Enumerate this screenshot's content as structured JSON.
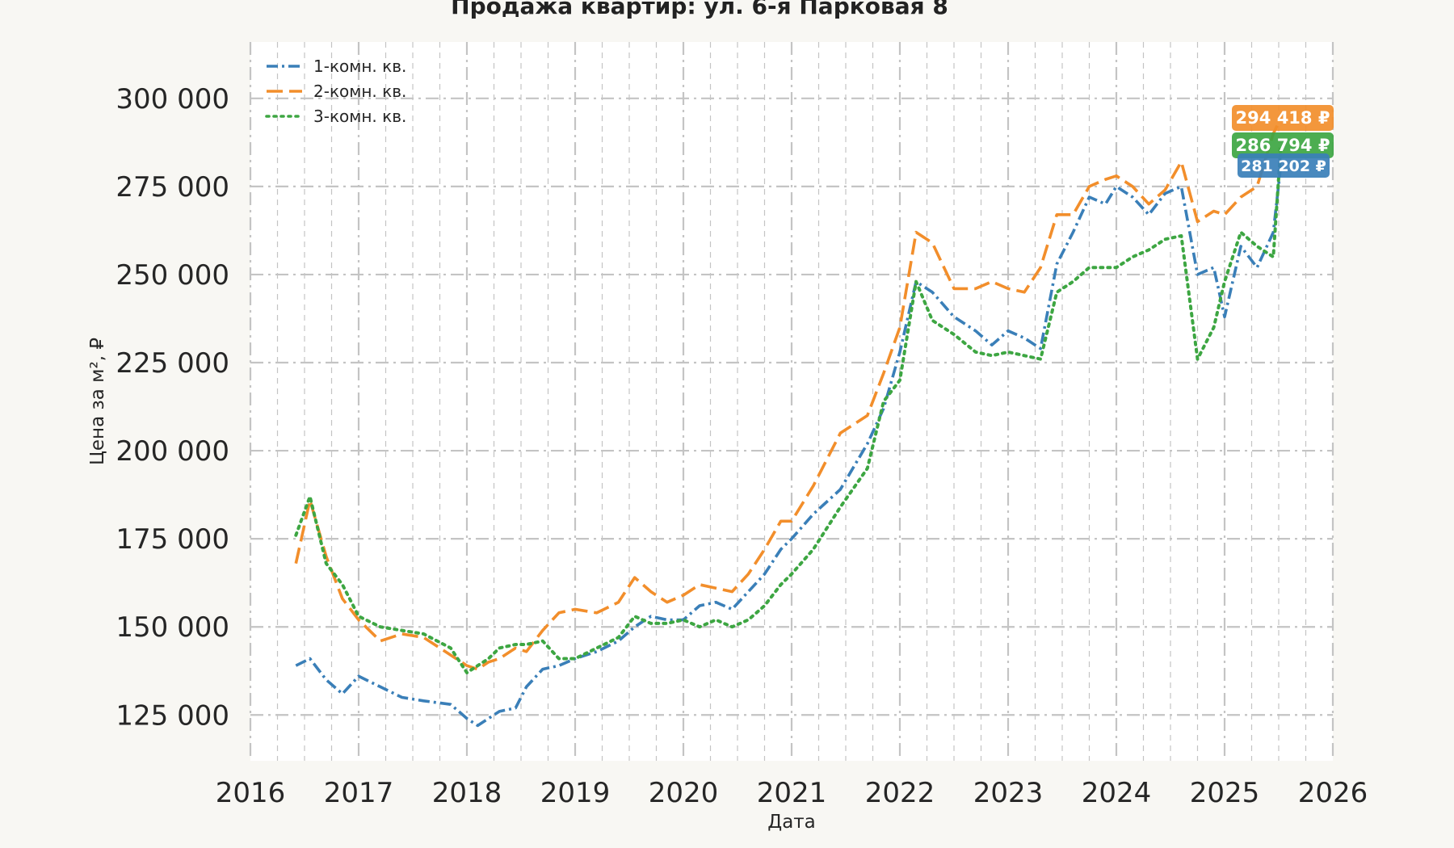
{
  "chart_data": {
    "type": "line",
    "title": "Продажа квартир: ул. 6-я Парковая 8",
    "xlabel": "Дата",
    "ylabel": "Цена за м², ₽",
    "xlim": [
      2016.0,
      2026.0
    ],
    "ylim": [
      112000,
      316000
    ],
    "x_ticks": [
      "2016",
      "2017",
      "2018",
      "2019",
      "2020",
      "2021",
      "2022",
      "2023",
      "2024",
      "2025",
      "2026"
    ],
    "y_ticks": [
      {
        "value": 125000,
        "label": "125 000"
      },
      {
        "value": 150000,
        "label": "150 000"
      },
      {
        "value": 175000,
        "label": "175 000"
      },
      {
        "value": 200000,
        "label": "200 000"
      },
      {
        "value": 225000,
        "label": "225 000"
      },
      {
        "value": 250000,
        "label": "250 000"
      },
      {
        "value": 275000,
        "label": "275 000"
      },
      {
        "value": 300000,
        "label": "300 000"
      }
    ],
    "grid": true,
    "legend_position": "top-left",
    "series": [
      {
        "name": "1-комн. кв.",
        "color": "#3a7fb8",
        "style": "dashdot",
        "end_label": "281 202 ₽",
        "x": [
          2016.42,
          2016.55,
          2016.7,
          2016.85,
          2017.0,
          2017.2,
          2017.4,
          2017.6,
          2017.85,
          2018.0,
          2018.1,
          2018.2,
          2018.3,
          2018.45,
          2018.55,
          2018.7,
          2018.85,
          2019.0,
          2019.2,
          2019.4,
          2019.55,
          2019.7,
          2019.85,
          2020.0,
          2020.15,
          2020.3,
          2020.45,
          2020.6,
          2020.75,
          2020.9,
          2021.0,
          2021.2,
          2021.45,
          2021.7,
          2021.85,
          2022.0,
          2022.15,
          2022.3,
          2022.5,
          2022.7,
          2022.85,
          2023.0,
          2023.15,
          2023.3,
          2023.45,
          2023.6,
          2023.75,
          2023.9,
          2024.0,
          2024.15,
          2024.3,
          2024.45,
          2024.6,
          2024.75,
          2024.9,
          2025.0,
          2025.15,
          2025.3,
          2025.45,
          2025.52
        ],
        "y": [
          139000,
          141000,
          135000,
          131000,
          136000,
          133000,
          130000,
          129000,
          128000,
          124000,
          122000,
          124000,
          126000,
          127000,
          133000,
          138000,
          139000,
          141000,
          143000,
          146000,
          150000,
          153000,
          152000,
          152000,
          156000,
          157000,
          155000,
          160000,
          165000,
          172000,
          175000,
          182000,
          189000,
          202000,
          212000,
          228000,
          248000,
          245000,
          238000,
          234000,
          230000,
          234000,
          232000,
          229000,
          253000,
          262000,
          272000,
          270000,
          275000,
          272000,
          267000,
          273000,
          275000,
          250000,
          252000,
          238000,
          258000,
          252000,
          262000,
          281202
        ]
      },
      {
        "name": "2-комн. кв.",
        "color": "#f28e2b",
        "style": "dashed",
        "end_label": "294 418 ₽",
        "x": [
          2016.42,
          2016.55,
          2016.7,
          2016.85,
          2017.0,
          2017.2,
          2017.4,
          2017.6,
          2017.85,
          2018.0,
          2018.1,
          2018.2,
          2018.3,
          2018.45,
          2018.55,
          2018.7,
          2018.85,
          2019.0,
          2019.2,
          2019.4,
          2019.55,
          2019.7,
          2019.85,
          2020.0,
          2020.15,
          2020.3,
          2020.45,
          2020.6,
          2020.75,
          2020.9,
          2021.0,
          2021.2,
          2021.45,
          2021.7,
          2021.85,
          2022.0,
          2022.15,
          2022.3,
          2022.5,
          2022.7,
          2022.85,
          2023.0,
          2023.15,
          2023.3,
          2023.45,
          2023.6,
          2023.75,
          2023.9,
          2024.0,
          2024.15,
          2024.3,
          2024.45,
          2024.6,
          2024.75,
          2024.9,
          2025.0,
          2025.15,
          2025.3,
          2025.45,
          2025.52
        ],
        "y": [
          168000,
          186000,
          170000,
          158000,
          152000,
          146000,
          148000,
          147000,
          142000,
          139000,
          138000,
          140000,
          141000,
          144000,
          143000,
          149000,
          154000,
          155000,
          154000,
          157000,
          164000,
          160000,
          157000,
          159000,
          162000,
          161000,
          160000,
          165000,
          172000,
          180000,
          180000,
          190000,
          205000,
          210000,
          222000,
          235000,
          262000,
          259000,
          246000,
          246000,
          248000,
          246000,
          245000,
          252000,
          267000,
          267000,
          275000,
          277000,
          278000,
          275000,
          270000,
          274000,
          282000,
          265000,
          268000,
          267000,
          272000,
          275000,
          290000,
          294418
        ]
      },
      {
        "name": "3-комн. кв.",
        "color": "#3da642",
        "style": "dotted",
        "end_label": "286 794 ₽",
        "x": [
          2016.42,
          2016.55,
          2016.7,
          2016.85,
          2017.0,
          2017.2,
          2017.4,
          2017.6,
          2017.85,
          2018.0,
          2018.1,
          2018.2,
          2018.3,
          2018.45,
          2018.55,
          2018.7,
          2018.85,
          2019.0,
          2019.2,
          2019.4,
          2019.55,
          2019.7,
          2019.85,
          2020.0,
          2020.15,
          2020.3,
          2020.45,
          2020.6,
          2020.75,
          2020.9,
          2021.0,
          2021.2,
          2021.45,
          2021.7,
          2021.85,
          2022.0,
          2022.15,
          2022.3,
          2022.5,
          2022.7,
          2022.85,
          2023.0,
          2023.15,
          2023.3,
          2023.45,
          2023.6,
          2023.75,
          2023.9,
          2024.0,
          2024.15,
          2024.3,
          2024.45,
          2024.6,
          2024.75,
          2024.9,
          2025.0,
          2025.15,
          2025.3,
          2025.45,
          2025.52
        ],
        "y": [
          176000,
          187000,
          168000,
          162000,
          153000,
          150000,
          149000,
          148000,
          144000,
          137000,
          139000,
          141000,
          144000,
          145000,
          145000,
          146000,
          141000,
          141000,
          144000,
          147000,
          153000,
          151000,
          151000,
          152000,
          150000,
          152000,
          150000,
          152000,
          156000,
          162000,
          165000,
          172000,
          184000,
          195000,
          214000,
          220000,
          248000,
          237000,
          233000,
          228000,
          227000,
          228000,
          227000,
          226000,
          245000,
          248000,
          252000,
          252000,
          252000,
          255000,
          257000,
          260000,
          261000,
          226000,
          235000,
          248000,
          262000,
          258000,
          255000,
          286794
        ]
      }
    ]
  }
}
